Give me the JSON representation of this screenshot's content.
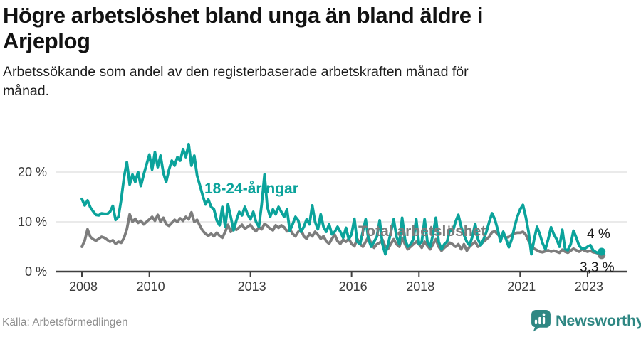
{
  "header": {
    "title": "Högre arbetslöshet bland unga än bland äldre i Arjeplog",
    "subtitle": "Arbetssökande som andel av den registerbaserade arbetskraften månad för månad."
  },
  "footer": {
    "source": "Källa: Arbetsförmedlingen",
    "brand": "Newsworthy"
  },
  "colors": {
    "accent_teal": "#0ba39b",
    "series_total_gray": "#7d7d7d",
    "grid": "#e4e4e4",
    "axis": "#404040",
    "tick_text": "#3b3b3b",
    "end_label_text": "#1a1a1a",
    "source_text": "#8e8e8e",
    "brand_teal": "#2f8783"
  },
  "chart_data": {
    "type": "line",
    "x_unit": "month",
    "x_start": 2008,
    "x_end": 2023.42,
    "grid": "horizontal",
    "legend_position": "inline-labels",
    "ylim": [
      0,
      26.5
    ],
    "x_ticks": [
      {
        "value": 2008,
        "label": "2008"
      },
      {
        "value": 2010,
        "label": "2010"
      },
      {
        "value": 2013,
        "label": "2013"
      },
      {
        "value": 2016,
        "label": "2016"
      },
      {
        "value": 2018,
        "label": "2018"
      },
      {
        "value": 2021,
        "label": "2021"
      },
      {
        "value": 2023,
        "label": "2023"
      }
    ],
    "y_ticks": [
      {
        "value": 0,
        "label": "0 %"
      },
      {
        "value": 10,
        "label": "10 %"
      },
      {
        "value": 20,
        "label": "20 %"
      }
    ],
    "series": [
      {
        "id": "young",
        "name": "18-24-åringar",
        "color": "#0ba39b",
        "end_label": "4 %",
        "end_value": 4.0,
        "values": [
          14.6,
          13.3,
          14.3,
          12.9,
          12.1,
          11.4,
          11.3,
          11.7,
          11.6,
          11.6,
          12.0,
          13.2,
          10.4,
          11.0,
          14.5,
          19.0,
          22.0,
          17.5,
          19.5,
          18.0,
          20.0,
          17.2,
          19.5,
          21.5,
          23.5,
          20.5,
          24.0,
          21.0,
          23.3,
          19.8,
          18.0,
          20.5,
          22.3,
          21.3,
          23.0,
          22.3,
          24.6,
          23.0,
          25.6,
          21.3,
          23.3,
          19.3,
          17.3,
          15.3,
          13.5,
          14.5,
          13.0,
          12.5,
          10.3,
          9.3,
          13.0,
          9.0,
          13.5,
          11.0,
          8.3,
          10.3,
          12.0,
          11.3,
          13.0,
          11.5,
          10.5,
          12.0,
          10.0,
          9.0,
          13.5,
          19.5,
          13.0,
          11.0,
          12.5,
          11.5,
          13.0,
          12.0,
          11.0,
          12.5,
          8.2,
          9.5,
          11.0,
          10.3,
          8.0,
          9.0,
          10.5,
          9.5,
          13.3,
          10.0,
          8.5,
          11.5,
          9.0,
          8.0,
          9.5,
          7.5,
          8.0,
          9.0,
          8.0,
          6.8,
          8.8,
          6.5,
          7.5,
          10.6,
          6.0,
          5.5,
          8.0,
          10.5,
          6.5,
          5.0,
          6.0,
          7.0,
          10.3,
          5.5,
          3.5,
          5.5,
          8.0,
          10.5,
          7.0,
          5.5,
          10.8,
          6.5,
          5.0,
          5.5,
          6.5,
          10.5,
          5.5,
          6.0,
          10.5,
          6.0,
          5.0,
          7.5,
          10.8,
          6.0,
          4.5,
          5.5,
          6.0,
          8.5,
          8.0,
          10.0,
          11.4,
          9.0,
          7.4,
          6.0,
          5.3,
          7.0,
          9.6,
          6.5,
          5.3,
          6.5,
          8.0,
          10.0,
          11.7,
          10.5,
          8.5,
          6.0,
          8.0,
          6.5,
          4.9,
          6.5,
          9.0,
          11.0,
          12.5,
          13.4,
          11.0,
          8.0,
          3.5,
          6.5,
          9.0,
          7.5,
          5.7,
          4.5,
          6.5,
          8.9,
          7.5,
          6.5,
          5.0,
          8.4,
          4.5,
          4.3,
          5.5,
          8.2,
          6.8,
          5.2,
          4.6,
          4.6,
          5.0,
          5.3,
          4.3,
          3.9,
          3.7,
          4.0
        ]
      },
      {
        "id": "total",
        "name": "Total arbetslöshet",
        "color": "#7d7d7d",
        "end_label": "3,3 %",
        "end_value": 3.3,
        "values": [
          5.0,
          6.2,
          8.5,
          7.0,
          6.5,
          6.2,
          6.6,
          7.0,
          6.8,
          6.4,
          6.0,
          6.3,
          5.6,
          6.0,
          5.8,
          6.8,
          8.5,
          11.5,
          10.0,
          10.6,
          9.8,
          10.2,
          9.5,
          10.0,
          10.5,
          11.0,
          10.2,
          11.4,
          10.0,
          10.8,
          9.5,
          9.2,
          9.8,
          10.4,
          10.0,
          10.7,
          10.2,
          11.0,
          10.5,
          11.9,
          10.0,
          10.4,
          9.2,
          8.2,
          7.6,
          7.2,
          7.6,
          7.1,
          7.8,
          7.2,
          6.8,
          8.0,
          9.4,
          8.0,
          8.8,
          8.4,
          8.9,
          9.4,
          8.6,
          9.0,
          9.4,
          8.6,
          8.1,
          8.9,
          8.5,
          9.6,
          9.2,
          8.6,
          8.3,
          9.3,
          8.8,
          9.3,
          8.9,
          8.1,
          8.5,
          7.6,
          7.1,
          8.0,
          8.4,
          7.1,
          6.6,
          7.6,
          7.1,
          8.0,
          7.4,
          6.6,
          7.1,
          6.1,
          5.6,
          6.6,
          7.4,
          6.1,
          5.6,
          6.4,
          6.0,
          6.6,
          5.6,
          5.1,
          6.6,
          5.6,
          5.0,
          6.0,
          7.0,
          5.6,
          4.8,
          5.5,
          5.8,
          6.4,
          5.0,
          4.6,
          5.6,
          6.5,
          5.5,
          5.0,
          6.8,
          5.5,
          4.5,
          5.0,
          5.5,
          6.0,
          5.5,
          4.8,
          6.0,
          5.2,
          4.5,
          5.5,
          6.5,
          5.0,
          4.2,
          4.8,
          5.2,
          5.8,
          5.5,
          5.0,
          5.5,
          4.5,
          5.5,
          4.2,
          5.0,
          5.5,
          6.0,
          5.0,
          5.5,
          6.0,
          6.5,
          7.0,
          7.9,
          8.1,
          7.5,
          7.0,
          7.2,
          6.8,
          7.0,
          7.4,
          7.7,
          7.8,
          7.8,
          8.0,
          7.4,
          6.2,
          5.2,
          4.6,
          4.3,
          4.0,
          3.9,
          4.1,
          4.3,
          4.0,
          4.2,
          4.0,
          3.8,
          4.4,
          4.0,
          3.8,
          4.2,
          4.6,
          4.3,
          4.0,
          4.5,
          4.2,
          4.0,
          4.2,
          3.9,
          3.8,
          3.6,
          3.3
        ]
      }
    ]
  }
}
